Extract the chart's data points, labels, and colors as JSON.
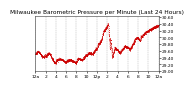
{
  "title": "Milwaukee Barometric Pressure per Minute (Last 24 Hours)",
  "background_color": "#ffffff",
  "plot_bg_color": "#ffffff",
  "line_color": "#cc0000",
  "grid_color": "#888888",
  "ylim": [
    29.0,
    30.65
  ],
  "yticks": [
    29.0,
    29.2,
    29.4,
    29.6,
    29.8,
    30.0,
    30.2,
    30.4,
    30.6
  ],
  "title_fontsize": 4.2,
  "tick_fontsize": 3.2,
  "num_points": 1440
}
